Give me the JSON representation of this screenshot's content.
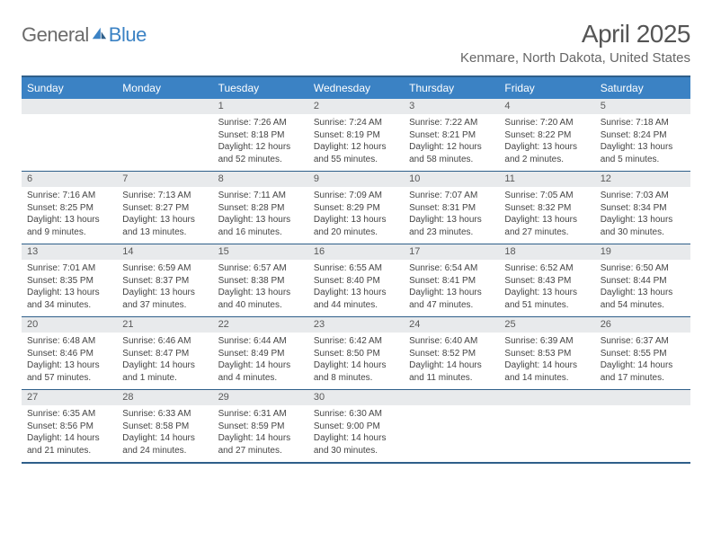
{
  "logo": {
    "general": "General",
    "blue": "Blue"
  },
  "title": "April 2025",
  "location": "Kenmare, North Dakota, United States",
  "dayNames": [
    "Sunday",
    "Monday",
    "Tuesday",
    "Wednesday",
    "Thursday",
    "Friday",
    "Saturday"
  ],
  "colors": {
    "header_bar": "#3b82c4",
    "rule": "#2f5f8a",
    "daynum_bg": "#e8eaec",
    "logo_gray": "#6b6b6b",
    "logo_blue": "#3b82c4"
  },
  "weeks": [
    [
      {
        "num": "",
        "sunrise": "",
        "sunset": "",
        "daylight": ""
      },
      {
        "num": "",
        "sunrise": "",
        "sunset": "",
        "daylight": ""
      },
      {
        "num": "1",
        "sunrise": "Sunrise: 7:26 AM",
        "sunset": "Sunset: 8:18 PM",
        "daylight": "Daylight: 12 hours and 52 minutes."
      },
      {
        "num": "2",
        "sunrise": "Sunrise: 7:24 AM",
        "sunset": "Sunset: 8:19 PM",
        "daylight": "Daylight: 12 hours and 55 minutes."
      },
      {
        "num": "3",
        "sunrise": "Sunrise: 7:22 AM",
        "sunset": "Sunset: 8:21 PM",
        "daylight": "Daylight: 12 hours and 58 minutes."
      },
      {
        "num": "4",
        "sunrise": "Sunrise: 7:20 AM",
        "sunset": "Sunset: 8:22 PM",
        "daylight": "Daylight: 13 hours and 2 minutes."
      },
      {
        "num": "5",
        "sunrise": "Sunrise: 7:18 AM",
        "sunset": "Sunset: 8:24 PM",
        "daylight": "Daylight: 13 hours and 5 minutes."
      }
    ],
    [
      {
        "num": "6",
        "sunrise": "Sunrise: 7:16 AM",
        "sunset": "Sunset: 8:25 PM",
        "daylight": "Daylight: 13 hours and 9 minutes."
      },
      {
        "num": "7",
        "sunrise": "Sunrise: 7:13 AM",
        "sunset": "Sunset: 8:27 PM",
        "daylight": "Daylight: 13 hours and 13 minutes."
      },
      {
        "num": "8",
        "sunrise": "Sunrise: 7:11 AM",
        "sunset": "Sunset: 8:28 PM",
        "daylight": "Daylight: 13 hours and 16 minutes."
      },
      {
        "num": "9",
        "sunrise": "Sunrise: 7:09 AM",
        "sunset": "Sunset: 8:29 PM",
        "daylight": "Daylight: 13 hours and 20 minutes."
      },
      {
        "num": "10",
        "sunrise": "Sunrise: 7:07 AM",
        "sunset": "Sunset: 8:31 PM",
        "daylight": "Daylight: 13 hours and 23 minutes."
      },
      {
        "num": "11",
        "sunrise": "Sunrise: 7:05 AM",
        "sunset": "Sunset: 8:32 PM",
        "daylight": "Daylight: 13 hours and 27 minutes."
      },
      {
        "num": "12",
        "sunrise": "Sunrise: 7:03 AM",
        "sunset": "Sunset: 8:34 PM",
        "daylight": "Daylight: 13 hours and 30 minutes."
      }
    ],
    [
      {
        "num": "13",
        "sunrise": "Sunrise: 7:01 AM",
        "sunset": "Sunset: 8:35 PM",
        "daylight": "Daylight: 13 hours and 34 minutes."
      },
      {
        "num": "14",
        "sunrise": "Sunrise: 6:59 AM",
        "sunset": "Sunset: 8:37 PM",
        "daylight": "Daylight: 13 hours and 37 minutes."
      },
      {
        "num": "15",
        "sunrise": "Sunrise: 6:57 AM",
        "sunset": "Sunset: 8:38 PM",
        "daylight": "Daylight: 13 hours and 40 minutes."
      },
      {
        "num": "16",
        "sunrise": "Sunrise: 6:55 AM",
        "sunset": "Sunset: 8:40 PM",
        "daylight": "Daylight: 13 hours and 44 minutes."
      },
      {
        "num": "17",
        "sunrise": "Sunrise: 6:54 AM",
        "sunset": "Sunset: 8:41 PM",
        "daylight": "Daylight: 13 hours and 47 minutes."
      },
      {
        "num": "18",
        "sunrise": "Sunrise: 6:52 AM",
        "sunset": "Sunset: 8:43 PM",
        "daylight": "Daylight: 13 hours and 51 minutes."
      },
      {
        "num": "19",
        "sunrise": "Sunrise: 6:50 AM",
        "sunset": "Sunset: 8:44 PM",
        "daylight": "Daylight: 13 hours and 54 minutes."
      }
    ],
    [
      {
        "num": "20",
        "sunrise": "Sunrise: 6:48 AM",
        "sunset": "Sunset: 8:46 PM",
        "daylight": "Daylight: 13 hours and 57 minutes."
      },
      {
        "num": "21",
        "sunrise": "Sunrise: 6:46 AM",
        "sunset": "Sunset: 8:47 PM",
        "daylight": "Daylight: 14 hours and 1 minute."
      },
      {
        "num": "22",
        "sunrise": "Sunrise: 6:44 AM",
        "sunset": "Sunset: 8:49 PM",
        "daylight": "Daylight: 14 hours and 4 minutes."
      },
      {
        "num": "23",
        "sunrise": "Sunrise: 6:42 AM",
        "sunset": "Sunset: 8:50 PM",
        "daylight": "Daylight: 14 hours and 8 minutes."
      },
      {
        "num": "24",
        "sunrise": "Sunrise: 6:40 AM",
        "sunset": "Sunset: 8:52 PM",
        "daylight": "Daylight: 14 hours and 11 minutes."
      },
      {
        "num": "25",
        "sunrise": "Sunrise: 6:39 AM",
        "sunset": "Sunset: 8:53 PM",
        "daylight": "Daylight: 14 hours and 14 minutes."
      },
      {
        "num": "26",
        "sunrise": "Sunrise: 6:37 AM",
        "sunset": "Sunset: 8:55 PM",
        "daylight": "Daylight: 14 hours and 17 minutes."
      }
    ],
    [
      {
        "num": "27",
        "sunrise": "Sunrise: 6:35 AM",
        "sunset": "Sunset: 8:56 PM",
        "daylight": "Daylight: 14 hours and 21 minutes."
      },
      {
        "num": "28",
        "sunrise": "Sunrise: 6:33 AM",
        "sunset": "Sunset: 8:58 PM",
        "daylight": "Daylight: 14 hours and 24 minutes."
      },
      {
        "num": "29",
        "sunrise": "Sunrise: 6:31 AM",
        "sunset": "Sunset: 8:59 PM",
        "daylight": "Daylight: 14 hours and 27 minutes."
      },
      {
        "num": "30",
        "sunrise": "Sunrise: 6:30 AM",
        "sunset": "Sunset: 9:00 PM",
        "daylight": "Daylight: 14 hours and 30 minutes."
      },
      {
        "num": "",
        "sunrise": "",
        "sunset": "",
        "daylight": ""
      },
      {
        "num": "",
        "sunrise": "",
        "sunset": "",
        "daylight": ""
      },
      {
        "num": "",
        "sunrise": "",
        "sunset": "",
        "daylight": ""
      }
    ]
  ]
}
